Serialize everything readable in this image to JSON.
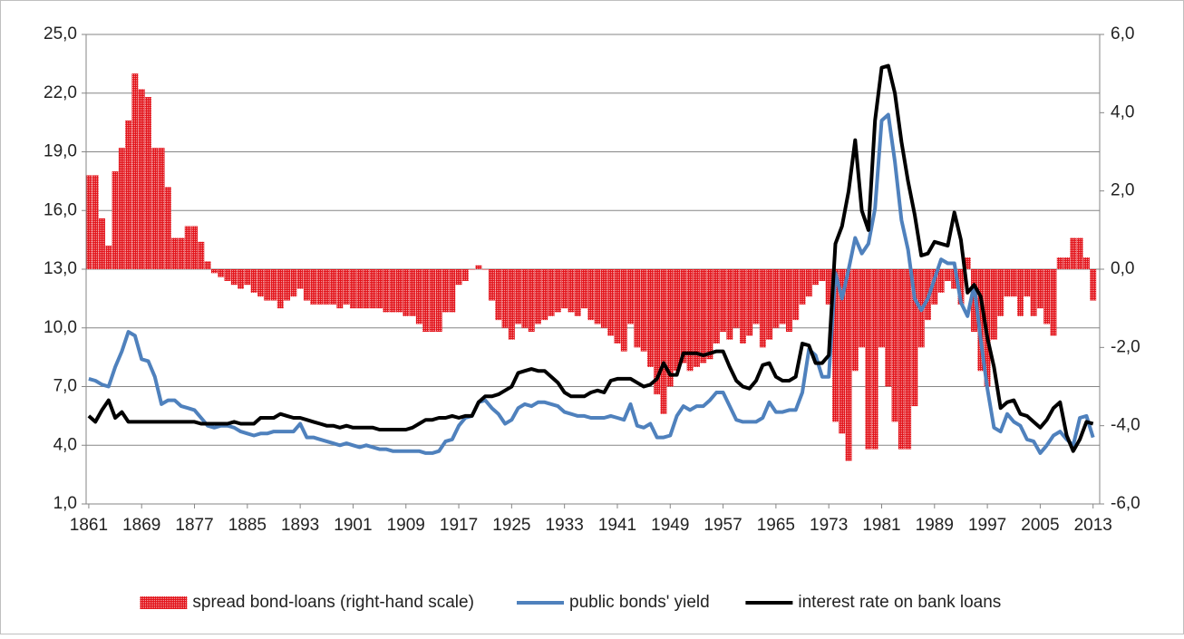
{
  "chart_data": {
    "type": "bar-line",
    "x": [
      1861,
      1862,
      1863,
      1864,
      1865,
      1866,
      1867,
      1868,
      1869,
      1870,
      1871,
      1872,
      1873,
      1874,
      1875,
      1876,
      1877,
      1878,
      1879,
      1880,
      1881,
      1882,
      1883,
      1884,
      1885,
      1886,
      1887,
      1888,
      1889,
      1890,
      1891,
      1892,
      1893,
      1894,
      1895,
      1896,
      1897,
      1898,
      1899,
      1900,
      1901,
      1902,
      1903,
      1904,
      1905,
      1906,
      1907,
      1908,
      1909,
      1910,
      1911,
      1912,
      1913,
      1914,
      1915,
      1916,
      1917,
      1918,
      1919,
      1920,
      1921,
      1922,
      1923,
      1924,
      1925,
      1926,
      1927,
      1928,
      1929,
      1930,
      1931,
      1932,
      1933,
      1934,
      1935,
      1936,
      1937,
      1938,
      1939,
      1940,
      1941,
      1942,
      1943,
      1944,
      1945,
      1946,
      1947,
      1948,
      1949,
      1950,
      1951,
      1952,
      1953,
      1954,
      1955,
      1956,
      1957,
      1958,
      1959,
      1960,
      1961,
      1962,
      1963,
      1964,
      1965,
      1966,
      1967,
      1968,
      1969,
      1970,
      1971,
      1972,
      1973,
      1974,
      1975,
      1976,
      1977,
      1978,
      1979,
      1980,
      1981,
      1982,
      1983,
      1984,
      1985,
      1986,
      1987,
      1988,
      1989,
      1990,
      1991,
      1992,
      1993,
      1994,
      1995,
      1996,
      1997,
      1998,
      1999,
      2000,
      2001,
      2002,
      2003,
      2004,
      2005,
      2006,
      2007,
      2008,
      2009,
      2010,
      2011,
      2012,
      2013
    ],
    "xlim": [
      1860.6,
      2014
    ],
    "xticks": [
      1861,
      1869,
      1877,
      1885,
      1893,
      1901,
      1909,
      1917,
      1925,
      1933,
      1941,
      1949,
      1957,
      1965,
      1973,
      1981,
      1989,
      1997,
      2005,
      2013
    ],
    "ylim": [
      1,
      25
    ],
    "yticks": [
      {
        "value": 1,
        "label": "1,0"
      },
      {
        "value": 4,
        "label": "4,0"
      },
      {
        "value": 7,
        "label": "7,0"
      },
      {
        "value": 10,
        "label": "10,0"
      },
      {
        "value": 13,
        "label": "13,0"
      },
      {
        "value": 16,
        "label": "16,0"
      },
      {
        "value": 19,
        "label": "19,0"
      },
      {
        "value": 22,
        "label": "22,0"
      },
      {
        "value": 25,
        "label": "25,0"
      }
    ],
    "y2lim": [
      -6,
      6
    ],
    "y2ticks": [
      {
        "value": -6,
        "label": "-6,0"
      },
      {
        "value": -4,
        "label": "-4,0"
      },
      {
        "value": -2,
        "label": "-2,0"
      },
      {
        "value": 0,
        "label": "0,0"
      },
      {
        "value": 2,
        "label": "2,0"
      },
      {
        "value": 4,
        "label": "4,0"
      },
      {
        "value": 6,
        "label": "6,0"
      }
    ],
    "grid": true,
    "legend": "bottom",
    "series": [
      {
        "name": "spread bond-loans (right-hand scale)",
        "type": "bar",
        "axis": "y2",
        "color": "#e3141b",
        "values": [
          2.4,
          2.4,
          1.3,
          0.6,
          2.5,
          3.1,
          3.8,
          5.0,
          4.6,
          4.4,
          3.1,
          3.1,
          2.1,
          0.8,
          0.8,
          1.1,
          1.1,
          0.7,
          0.2,
          -0.1,
          -0.2,
          -0.3,
          -0.4,
          -0.5,
          -0.4,
          -0.6,
          -0.7,
          -0.8,
          -0.8,
          -1.0,
          -0.8,
          -0.7,
          -0.5,
          -0.8,
          -0.9,
          -0.9,
          -0.9,
          -0.9,
          -1.0,
          -0.9,
          -1.0,
          -1.0,
          -1.0,
          -1.0,
          -1.0,
          -1.1,
          -1.1,
          -1.1,
          -1.2,
          -1.2,
          -1.4,
          -1.6,
          -1.6,
          -1.6,
          -1.1,
          -1.1,
          -0.4,
          -0.3,
          0.0,
          0.1,
          0.0,
          -0.8,
          -1.3,
          -1.5,
          -1.8,
          -1.4,
          -1.5,
          -1.6,
          -1.4,
          -1.3,
          -1.2,
          -1.1,
          -1.0,
          -1.1,
          -1.2,
          -1.0,
          -1.3,
          -1.4,
          -1.5,
          -1.7,
          -1.9,
          -2.1,
          -1.4,
          -2.0,
          -2.1,
          -2.5,
          -3.2,
          -3.7,
          -3.0,
          -2.6,
          -2.4,
          -2.6,
          -2.5,
          -2.4,
          -2.3,
          -1.9,
          -1.6,
          -1.8,
          -1.5,
          -1.9,
          -1.7,
          -1.4,
          -2.0,
          -1.8,
          -1.5,
          -1.4,
          -1.6,
          -1.3,
          -0.9,
          -0.7,
          -0.4,
          -0.3,
          -0.9,
          -3.9,
          -4.2,
          -4.9,
          -2.6,
          -2.0,
          -4.6,
          -4.6,
          -2.0,
          -3.0,
          -3.9,
          -4.6,
          -4.6,
          -3.5,
          -2.0,
          -1.3,
          -0.9,
          -0.6,
          -0.3,
          -0.5,
          -0.9,
          0.3,
          -1.6,
          -2.6,
          -3.0,
          -1.8,
          -1.2,
          -0.7,
          -0.7,
          -1.2,
          -0.7,
          -1.2,
          -1.0,
          -1.4,
          -1.7,
          0.3,
          0.3,
          0.8,
          0.8,
          0.3,
          -0.8
        ]
      },
      {
        "name": "public bonds' yield",
        "type": "line",
        "color": "#4f81bd",
        "values": [
          7.4,
          7.3,
          7.1,
          7.0,
          8.0,
          8.8,
          9.8,
          9.6,
          8.4,
          8.3,
          7.5,
          6.1,
          6.3,
          6.3,
          6.0,
          5.9,
          5.8,
          5.4,
          5.0,
          4.9,
          5.0,
          5.0,
          4.9,
          4.7,
          4.6,
          4.5,
          4.6,
          4.6,
          4.7,
          4.7,
          4.7,
          4.7,
          5.1,
          4.4,
          4.4,
          4.3,
          4.2,
          4.1,
          4.0,
          4.1,
          4.0,
          3.9,
          4.0,
          3.9,
          3.8,
          3.8,
          3.7,
          3.7,
          3.7,
          3.7,
          3.7,
          3.6,
          3.6,
          3.7,
          4.2,
          4.3,
          5.0,
          5.4,
          5.5,
          6.2,
          6.3,
          5.9,
          5.6,
          5.1,
          5.3,
          5.9,
          6.1,
          6.0,
          6.2,
          6.2,
          6.1,
          6.0,
          5.7,
          5.6,
          5.5,
          5.5,
          5.4,
          5.4,
          5.4,
          5.5,
          5.4,
          5.3,
          6.1,
          5.0,
          4.9,
          5.1,
          4.4,
          4.4,
          4.5,
          5.5,
          6.0,
          5.8,
          6.0,
          6.0,
          6.3,
          6.7,
          6.7,
          6.0,
          5.3,
          5.2,
          5.2,
          5.2,
          5.4,
          6.2,
          5.7,
          5.7,
          5.8,
          5.8,
          6.7,
          8.9,
          8.6,
          7.5,
          7.5,
          12.8,
          11.5,
          13.0,
          14.6,
          13.8,
          14.3,
          16.1,
          20.6,
          20.9,
          18.5,
          15.5,
          14.0,
          11.5,
          10.9,
          11.5,
          12.5,
          13.5,
          13.3,
          13.3,
          11.3,
          10.6,
          12.2,
          9.4,
          6.9,
          4.9,
          4.7,
          5.6,
          5.2,
          5.0,
          4.3,
          4.2,
          3.6,
          4.0,
          4.5,
          4.7,
          4.3,
          4.0,
          5.4,
          5.5,
          4.4
        ]
      },
      {
        "name": "interest rate on bank loans",
        "type": "line",
        "color": "#000000",
        "values": [
          5.5,
          5.2,
          5.8,
          6.3,
          5.4,
          5.7,
          5.2,
          5.2,
          5.2,
          5.2,
          5.2,
          5.2,
          5.2,
          5.2,
          5.2,
          5.2,
          5.2,
          5.1,
          5.1,
          5.1,
          5.1,
          5.1,
          5.2,
          5.1,
          5.1,
          5.1,
          5.4,
          5.4,
          5.4,
          5.6,
          5.5,
          5.4,
          5.4,
          5.3,
          5.2,
          5.1,
          5.0,
          5.0,
          4.9,
          5.0,
          4.9,
          4.9,
          4.9,
          4.9,
          4.8,
          4.8,
          4.8,
          4.8,
          4.8,
          4.9,
          5.1,
          5.3,
          5.3,
          5.4,
          5.4,
          5.5,
          5.4,
          5.5,
          5.5,
          6.2,
          6.5,
          6.5,
          6.6,
          6.8,
          7.0,
          7.7,
          7.8,
          7.9,
          7.8,
          7.8,
          7.5,
          7.2,
          6.7,
          6.5,
          6.5,
          6.5,
          6.7,
          6.8,
          6.7,
          7.3,
          7.4,
          7.4,
          7.4,
          7.2,
          7.0,
          7.1,
          7.4,
          8.2,
          7.6,
          7.6,
          8.7,
          8.7,
          8.7,
          8.6,
          8.7,
          8.8,
          8.8,
          8.0,
          7.3,
          7.0,
          6.9,
          7.3,
          8.1,
          8.2,
          7.5,
          7.3,
          7.3,
          7.5,
          9.2,
          9.1,
          8.2,
          8.2,
          8.6,
          14.3,
          15.2,
          17.0,
          19.6,
          16.0,
          15.0,
          20.6,
          23.3,
          23.4,
          22.0,
          19.5,
          17.5,
          15.8,
          13.7,
          13.8,
          14.4,
          14.3,
          14.2,
          15.9,
          14.5,
          11.8,
          12.2,
          11.6,
          9.5,
          8.0,
          5.9,
          6.2,
          6.3,
          5.6,
          5.5,
          5.2,
          4.9,
          5.3,
          5.9,
          6.2,
          4.5,
          3.7,
          4.3,
          5.2,
          5.1
        ]
      }
    ]
  }
}
